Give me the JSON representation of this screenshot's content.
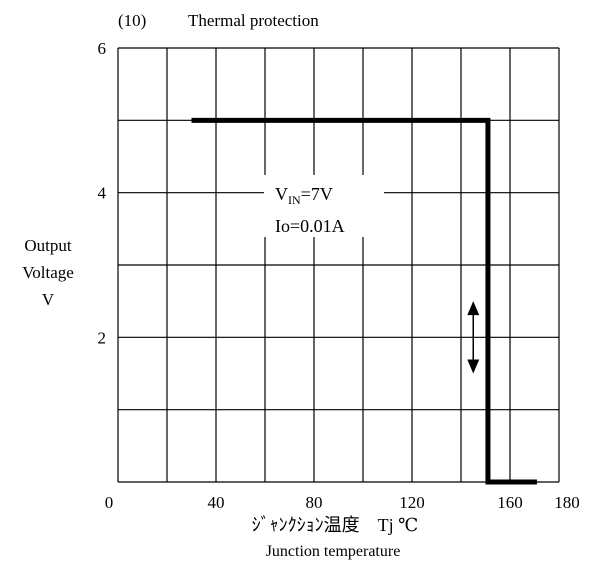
{
  "header": {
    "number": "(10)",
    "title": "Thermal protection"
  },
  "chart_data": {
    "type": "line",
    "title": "Thermal protection",
    "ylabel_lines": [
      "Output",
      "Voltage",
      "V"
    ],
    "xlabel_jp": "ｼﾞｬﾝｸｼｮﾝ温度　Tj ℃",
    "xlabel_en": "Junction temperature",
    "xlim": [
      0,
      180
    ],
    "ylim": [
      0,
      6
    ],
    "x_ticks": [
      0,
      40,
      80,
      120,
      160,
      180
    ],
    "y_ticks": [
      2,
      4,
      6
    ],
    "grid_x": [
      0,
      20,
      40,
      60,
      80,
      100,
      120,
      140,
      160,
      180
    ],
    "grid_y": [
      0,
      1,
      2,
      3,
      4,
      5,
      6
    ],
    "grid": true,
    "annotation": {
      "v_main": "V",
      "v_sub": "IN",
      "v_value": "=7V",
      "line2": "Io=0.01A"
    },
    "series": [
      {
        "x": [
          30,
          151,
          151,
          171
        ],
        "y": [
          5,
          5,
          0,
          0
        ]
      }
    ],
    "arrow": {
      "x": 145,
      "y_from": 1.5,
      "y_to": 2.5
    }
  }
}
